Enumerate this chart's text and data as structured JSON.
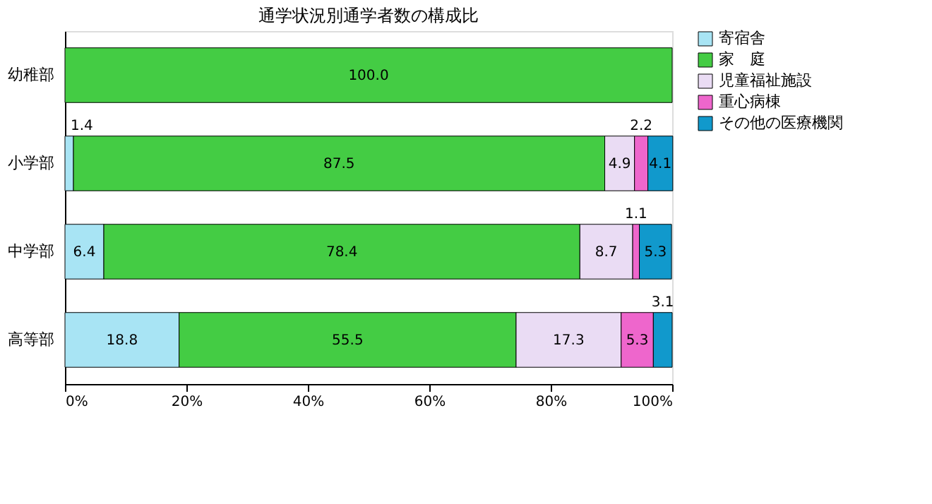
{
  "chart_data": {
    "type": "bar",
    "orientation": "horizontal",
    "stacked": true,
    "title": "通学状況別通学者数の構成比",
    "categories": [
      "幼稚部",
      "小学部",
      "中学部",
      "高等部"
    ],
    "series": [
      {
        "name": "寄宿舎",
        "color": "#a8e4f4",
        "values": [
          0,
          1.4,
          6.4,
          18.8
        ],
        "value_labels": [
          null,
          "1.4",
          "6.4",
          "18.8"
        ]
      },
      {
        "name": "家　庭",
        "color": "#44cc44",
        "values": [
          100.0,
          87.5,
          78.4,
          55.5
        ],
        "value_labels": [
          "100.0",
          "87.5",
          "78.4",
          "55.5"
        ]
      },
      {
        "name": "児童福祉施設",
        "color": "#eadcf4",
        "values": [
          0,
          4.9,
          8.7,
          17.3
        ],
        "value_labels": [
          null,
          "4.9",
          "8.7",
          "17.3"
        ]
      },
      {
        "name": "重心病棟",
        "color": "#ee66cc",
        "values": [
          0,
          2.2,
          1.1,
          5.3
        ],
        "value_labels": [
          null,
          "2.2",
          "1.1",
          "5.3"
        ]
      },
      {
        "name": "その他の医療機関",
        "color": "#1199cc",
        "values": [
          0,
          4.1,
          5.3,
          3.1
        ],
        "value_labels": [
          null,
          "4.1",
          "5.3",
          "3.1"
        ]
      }
    ],
    "xlim": [
      0,
      100
    ],
    "xticks": [
      {
        "value": 0,
        "label": "0%"
      },
      {
        "value": 20,
        "label": "20%"
      },
      {
        "value": 40,
        "label": "40%"
      },
      {
        "value": 60,
        "label": "60%"
      },
      {
        "value": 80,
        "label": "80%"
      },
      {
        "value": 100,
        "label": "100%"
      }
    ],
    "grid": false,
    "legend": "right"
  }
}
